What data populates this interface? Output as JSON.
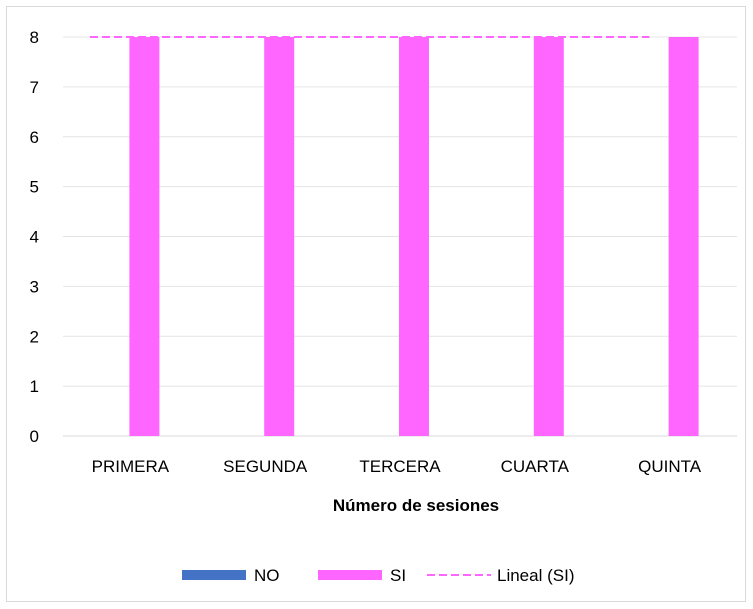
{
  "chart_data": {
    "type": "bar",
    "title": "",
    "xlabel": "Número de sesiones",
    "ylabel": "",
    "categories": [
      "PRIMERA",
      "SEGUNDA",
      "TERCERA",
      "CUARTA",
      "QUINTA"
    ],
    "ylim": [
      0,
      8
    ],
    "yticks": [
      0,
      1,
      2,
      3,
      4,
      5,
      6,
      7,
      8
    ],
    "grid": true,
    "legend_position": "bottom",
    "series": [
      {
        "name": "NO",
        "values": [
          0,
          0,
          0,
          0,
          0
        ],
        "color": "#4472c4"
      },
      {
        "name": "SI",
        "values": [
          8,
          8,
          8,
          8,
          8
        ],
        "color": "#ff66ff"
      }
    ],
    "trendline": {
      "name": "Lineal (SI)",
      "series": "SI",
      "style": "dashed",
      "color": "#ff66ff",
      "values": [
        8,
        8,
        8,
        8,
        8
      ]
    }
  }
}
